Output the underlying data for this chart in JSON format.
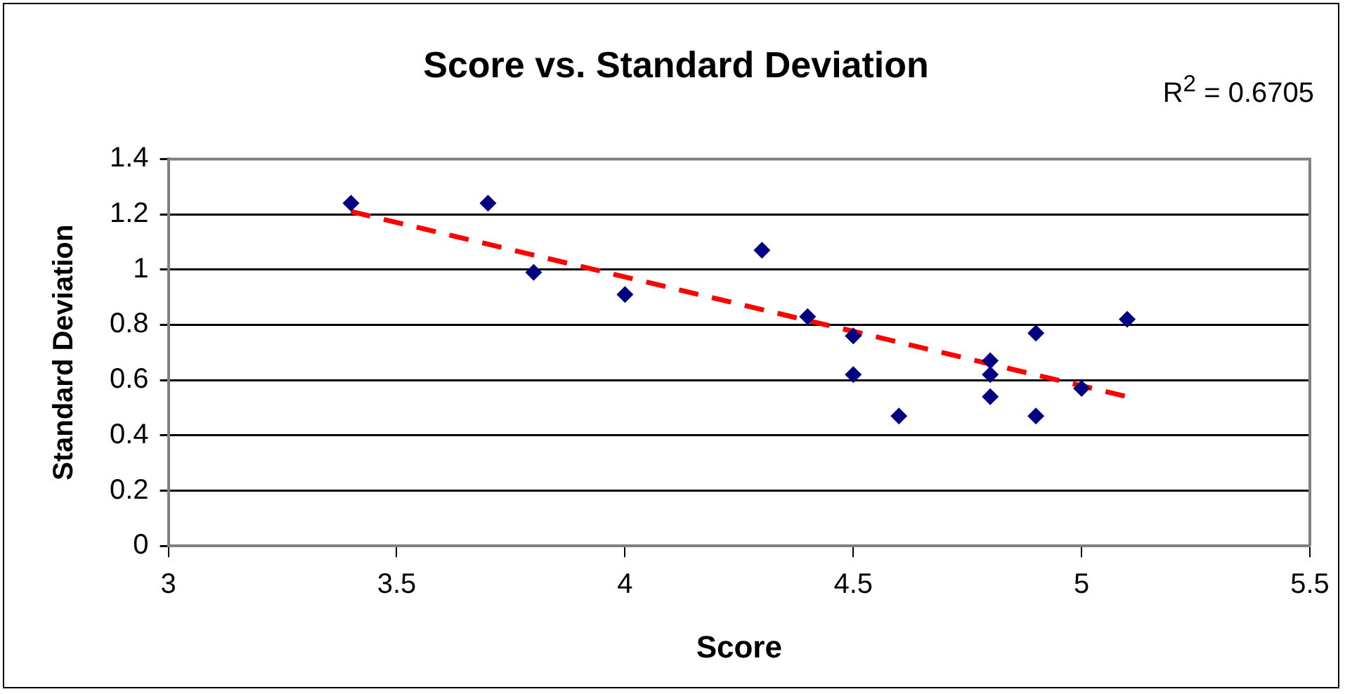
{
  "chart_data": {
    "type": "scatter",
    "title": "Score vs. Standard Deviation",
    "xlabel": "Score",
    "ylabel": "Standard Deviation",
    "annotations": [
      "R$^{2}$ = 0.6705"
    ],
    "series": [
      {
        "type": "scatter",
        "color": "#000080",
        "x": [
          3.4,
          3.7,
          3.8,
          4.0,
          4.3,
          4.4,
          4.5,
          4.5,
          4.6,
          4.8,
          4.8,
          4.8,
          4.9,
          4.9,
          5.0,
          5.1
        ],
        "values": [
          1.24,
          1.24,
          0.99,
          0.91,
          1.07,
          0.83,
          0.76,
          0.62,
          0.47,
          0.67,
          0.62,
          0.54,
          0.77,
          0.47,
          0.57,
          0.82
        ],
        "marker": "diamond"
      },
      {
        "type": "line",
        "color": "#ff0000",
        "x": [
          3.4,
          5.1
        ],
        "values": [
          1.21,
          0.54
        ],
        "line_style": "dashed",
        "marker": "none"
      }
    ],
    "xlim": [
      3,
      5.5
    ],
    "xticks": [
      3,
      3.5,
      4,
      4.5,
      5,
      5.5
    ],
    "ylim": [
      0,
      1.4
    ],
    "yticks": [
      0,
      0.2,
      0.4,
      0.6,
      0.8,
      1,
      1.2,
      1.4
    ],
    "grid": "y",
    "legend": false
  }
}
